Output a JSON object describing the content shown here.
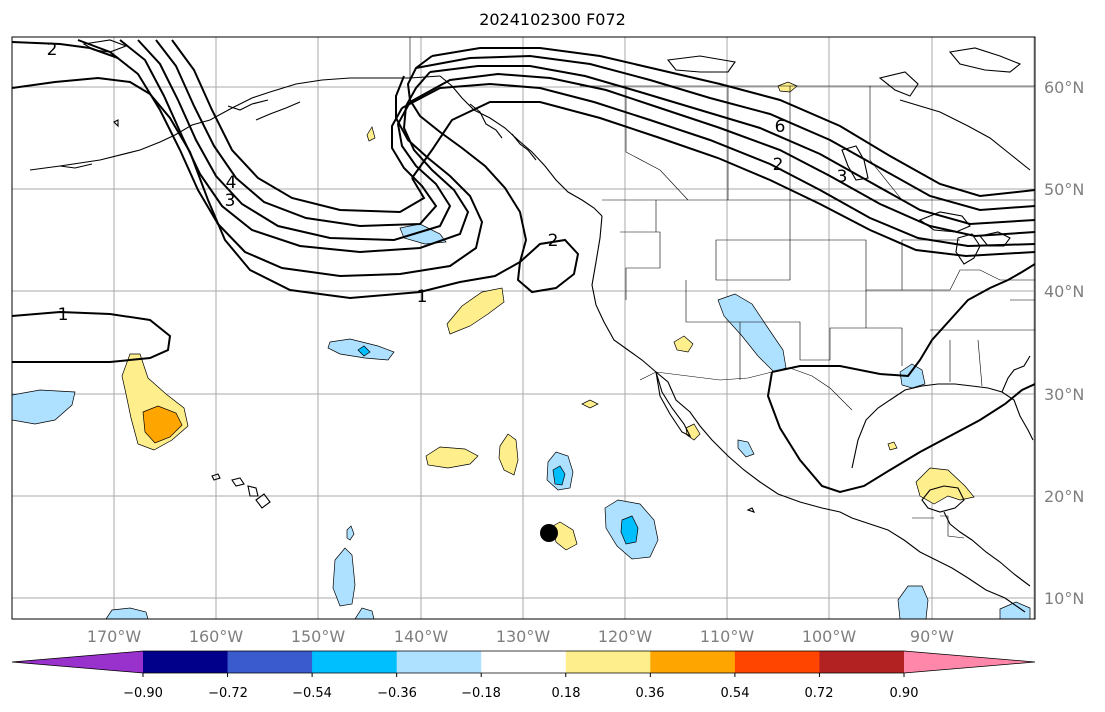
{
  "title": "2024102300 F072",
  "lat_labels": [
    "60°N",
    "50°N",
    "40°N",
    "30°N",
    "20°N",
    "10°N"
  ],
  "lon_labels": [
    "170°W",
    "160°W",
    "150°W",
    "140°W",
    "130°W",
    "120°W",
    "110°W",
    "100°W",
    "90°W"
  ],
  "colorbar": {
    "ticks": [
      "−0.90",
      "−0.72",
      "−0.54",
      "−0.36",
      "−0.18",
      "0.18",
      "0.36",
      "0.54",
      "0.72",
      "0.90"
    ],
    "colors": [
      "#9932CC",
      "#00008B",
      "#3A5BCD",
      "#00BFFF",
      "#AEE0FF",
      "#FFFFFF",
      "#FFEE8C",
      "#FFA500",
      "#FF4500",
      "#B22222",
      "#FF88AA"
    ]
  },
  "contour_labels": [
    "2",
    "1",
    "1",
    "2",
    "4",
    "3",
    "6",
    "2",
    "3"
  ],
  "fill_colors": {
    "light_blue": "#AEE0FF",
    "blue": "#00BFFF",
    "light_yellow": "#FFEE8C",
    "orange": "#FFA500"
  }
}
